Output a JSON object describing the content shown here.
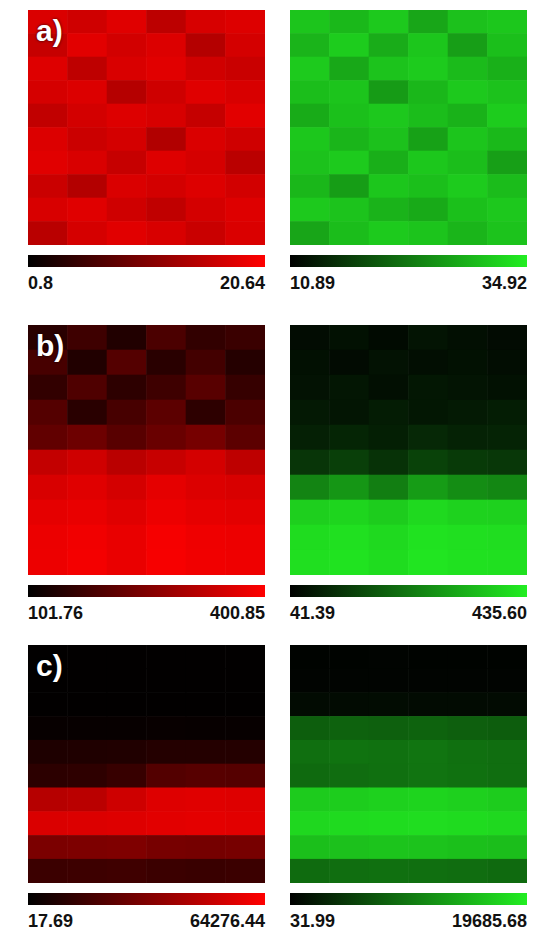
{
  "chart_data": [
    {
      "type": "heatmap",
      "panel_label": "a)",
      "color": "#ff0000",
      "tick_labels": false,
      "colorbar": {
        "range": [
          0.8,
          20.64
        ],
        "ticks": [
          0.8,
          20.64
        ]
      },
      "cells": [
        [
          17.8,
          16.9,
          18.2,
          15.4,
          17.5,
          18.0
        ],
        [
          16.2,
          18.4,
          17.1,
          17.9,
          14.8,
          17.3
        ],
        [
          18.1,
          15.6,
          17.7,
          18.3,
          17.0,
          16.4
        ],
        [
          17.4,
          17.9,
          14.9,
          16.8,
          18.2,
          17.6
        ],
        [
          15.8,
          17.2,
          18.0,
          17.5,
          16.1,
          18.4
        ],
        [
          17.9,
          16.6,
          17.3,
          14.6,
          17.8,
          16.9
        ],
        [
          18.3,
          17.7,
          16.2,
          18.1,
          17.4,
          15.3
        ],
        [
          16.5,
          14.7,
          17.8,
          17.2,
          18.0,
          17.1
        ],
        [
          17.6,
          18.2,
          16.9,
          15.7,
          17.3,
          18.1
        ],
        [
          15.2,
          17.4,
          18.3,
          17.6,
          16.4,
          17.8
        ]
      ]
    },
    {
      "type": "heatmap",
      "color": "#22ee22",
      "tick_labels": false,
      "colorbar": {
        "range": [
          10.89,
          34.92
        ],
        "ticks": [
          10.89,
          34.92
        ]
      },
      "cells": [
        [
          30.8,
          29.5,
          31.2,
          27.6,
          30.4,
          31.0
        ],
        [
          29.1,
          31.5,
          28.3,
          30.9,
          26.8,
          30.2
        ],
        [
          31.3,
          27.9,
          30.6,
          31.4,
          29.8,
          28.7
        ],
        [
          30.1,
          30.7,
          26.5,
          29.4,
          31.2,
          30.5
        ],
        [
          28.2,
          30.3,
          31.1,
          30.0,
          28.9,
          31.5
        ],
        [
          31.0,
          29.2,
          30.4,
          27.1,
          30.8,
          29.6
        ],
        [
          30.5,
          31.3,
          28.6,
          31.0,
          30.1,
          26.9
        ],
        [
          29.4,
          26.7,
          30.9,
          30.2,
          31.4,
          29.9
        ],
        [
          31.2,
          30.6,
          29.0,
          28.1,
          30.3,
          31.1
        ],
        [
          27.5,
          30.0,
          31.3,
          30.7,
          29.2,
          30.6
        ]
      ]
    },
    {
      "type": "heatmap",
      "panel_label": "b)",
      "color": "#ff0000",
      "tick_labels": false,
      "colorbar": {
        "range": [
          101.76,
          400.85
        ],
        "ticks": [
          101.76,
          400.85
        ]
      },
      "cells": [
        [
          150,
          175,
          140,
          190,
          160,
          170
        ],
        [
          185,
          140,
          200,
          150,
          180,
          145
        ],
        [
          160,
          195,
          155,
          175,
          205,
          165
        ],
        [
          200,
          150,
          185,
          210,
          155,
          190
        ],
        [
          215,
          230,
          205,
          225,
          240,
          210
        ],
        [
          330,
          345,
          320,
          335,
          350,
          325
        ],
        [
          355,
          365,
          350,
          370,
          360,
          355
        ],
        [
          370,
          375,
          365,
          380,
          372,
          368
        ],
        [
          378,
          385,
          375,
          390,
          382,
          380
        ],
        [
          380,
          388,
          376,
          392,
          385,
          382
        ]
      ]
    },
    {
      "type": "heatmap",
      "color": "#22ee22",
      "tick_labels": false,
      "colorbar": {
        "range": [
          41.39,
          435.6
        ],
        "ticks": [
          41.39,
          {
            "value": 435.6,
            "label": "435.60"
          }
        ]
      },
      "cells": [
        [
          62,
          70,
          58,
          75,
          66,
          60
        ],
        [
          68,
          60,
          72,
          64,
          70,
          63
        ],
        [
          71,
          78,
          66,
          80,
          74,
          69
        ],
        [
          82,
          76,
          88,
          79,
          85,
          90
        ],
        [
          95,
          102,
          92,
          108,
          98,
          100
        ],
        [
          130,
          145,
          125,
          150,
          138,
          132
        ],
        [
          260,
          290,
          250,
          300,
          275,
          265
        ],
        [
          385,
          395,
          380,
          400,
          390,
          388
        ],
        [
          405,
          412,
          400,
          415,
          410,
          408
        ],
        [
          410,
          418,
          406,
          420,
          414,
          412
        ]
      ]
    },
    {
      "type": "heatmap",
      "panel_label": "c)",
      "color": "#ff0000",
      "tick_labels": false,
      "colorbar": {
        "range": [
          17.69,
          64276.44
        ],
        "ticks": [
          17.69,
          64276.44
        ]
      },
      "cells": [
        [
          450,
          450,
          460,
          450,
          440,
          450
        ],
        [
          480,
          470,
          480,
          490,
          470,
          480
        ],
        [
          600,
          620,
          610,
          640,
          620,
          600
        ],
        [
          1800,
          1900,
          1700,
          2000,
          1900,
          1800
        ],
        [
          7500,
          7800,
          8200,
          9000,
          9200,
          9100
        ],
        [
          11000,
          11500,
          14000,
          21000,
          22000,
          21500
        ],
        [
          46000,
          47000,
          52000,
          56000,
          56500,
          56000
        ],
        [
          55000,
          55500,
          56000,
          57000,
          57500,
          57000
        ],
        [
          31000,
          31500,
          32000,
          30000,
          29500,
          30000
        ],
        [
          15000,
          15500,
          16000,
          15000,
          14500,
          15000
        ]
      ]
    },
    {
      "type": "heatmap",
      "color": "#22ee22",
      "tick_labels": false,
      "colorbar": {
        "range": [
          31.99,
          19685.68
        ],
        "ticks": [
          31.99,
          19685.68
        ]
      },
      "cells": [
        [
          320,
          310,
          330,
          320,
          310,
          300
        ],
        [
          350,
          340,
          360,
          350,
          345,
          340
        ],
        [
          900,
          950,
          1000,
          980,
          920,
          900
        ],
        [
          7800,
          8100,
          8000,
          8200,
          7900,
          7700
        ],
        [
          9200,
          9500,
          9400,
          9700,
          9300,
          9100
        ],
        [
          8800,
          9000,
          9300,
          9600,
          9400,
          9100
        ],
        [
          16800,
          17000,
          17300,
          17500,
          17200,
          16900
        ],
        [
          17800,
          18000,
          18200,
          18300,
          18100,
          17900
        ],
        [
          15800,
          16000,
          16200,
          16100,
          15900,
          15700
        ],
        [
          8900,
          9100,
          9300,
          9200,
          9000,
          8800
        ]
      ]
    }
  ]
}
